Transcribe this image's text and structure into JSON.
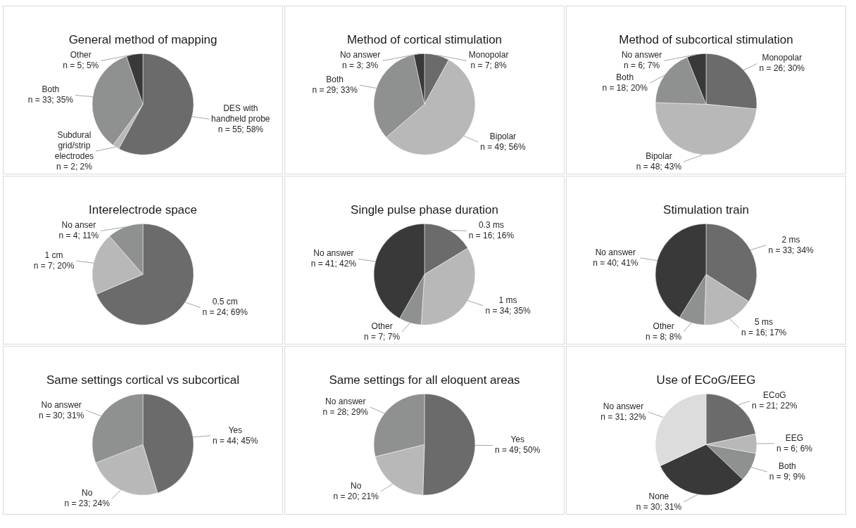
{
  "chart_data": [
    {
      "type": "pie",
      "title": "General method of mapping",
      "categories": [
        "DES with handheld probe",
        "Subdural grid/strip electrodes",
        "Both",
        "Other"
      ],
      "values": [
        55,
        2,
        33,
        5
      ],
      "colors": [
        "#6b6b6b",
        "#b8b8b8",
        "#8f9090",
        "#393939"
      ],
      "value_labels": [
        "n = 55; 58%",
        "n = 2; 2%",
        "n = 33; 35%",
        "n = 5; 5%"
      ]
    },
    {
      "type": "pie",
      "title": "Method of cortical stimulation",
      "categories": [
        "Monopolar",
        "Bipolar",
        "Both",
        "No answer"
      ],
      "values": [
        7,
        49,
        29,
        3
      ],
      "colors": [
        "#6b6b6b",
        "#b8b8b8",
        "#8f9090",
        "#393939"
      ],
      "value_labels": [
        "n = 7; 8%",
        "n = 49; 56%",
        "n = 29; 33%",
        "n = 3; 3%"
      ]
    },
    {
      "type": "pie",
      "title": "Method of subcortical stimulation",
      "categories": [
        "Monopolar",
        "Bipolar",
        "Both",
        "No answer"
      ],
      "values": [
        26,
        48,
        18,
        6
      ],
      "colors": [
        "#6b6b6b",
        "#b8b8b8",
        "#8f9090",
        "#393939"
      ],
      "value_labels": [
        "n = 26; 30%",
        "n = 48; 43%",
        "n = 18; 20%",
        "n = 6; 7%"
      ]
    },
    {
      "type": "pie",
      "title": "Interelectrode space",
      "categories": [
        "0.5 cm",
        "1 cm",
        "No anser"
      ],
      "values": [
        24,
        7,
        4
      ],
      "colors": [
        "#6b6b6b",
        "#b8b8b8",
        "#8f9090"
      ],
      "value_labels": [
        "n = 24; 69%",
        "n = 7; 20%",
        "n = 4; 11%"
      ]
    },
    {
      "type": "pie",
      "title": "Single pulse phase duration",
      "categories": [
        "0.3 ms",
        "1 ms",
        "Other",
        "No answer"
      ],
      "values": [
        16,
        34,
        7,
        41
      ],
      "colors": [
        "#6b6b6b",
        "#b8b8b8",
        "#8f9090",
        "#393939"
      ],
      "value_labels": [
        "n = 16; 16%",
        "n = 34; 35%",
        "n = 7; 7%",
        "n = 41; 42%"
      ]
    },
    {
      "type": "pie",
      "title": "Stimulation train",
      "categories": [
        "2 ms",
        "5 ms",
        "Other",
        "No answer"
      ],
      "values": [
        33,
        16,
        8,
        40
      ],
      "colors": [
        "#6b6b6b",
        "#b8b8b8",
        "#8f9090",
        "#393939"
      ],
      "value_labels": [
        "n = 33; 34%",
        "n = 16; 17%",
        "n = 8; 8%",
        "n = 40; 41%"
      ]
    },
    {
      "type": "pie",
      "title": "Same settings cortical vs subcortical",
      "categories": [
        "Yes",
        "No",
        "No answer"
      ],
      "values": [
        44,
        23,
        30
      ],
      "colors": [
        "#6b6b6b",
        "#b8b8b8",
        "#8f9090"
      ],
      "value_labels": [
        "n = 44; 45%",
        "n = 23; 24%",
        "n = 30; 31%"
      ]
    },
    {
      "type": "pie",
      "title": "Same settings for all eloquent areas",
      "categories": [
        "Yes",
        "No",
        "No answer"
      ],
      "values": [
        49,
        20,
        28
      ],
      "colors": [
        "#6b6b6b",
        "#b8b8b8",
        "#8f9090"
      ],
      "value_labels": [
        "n = 49; 50%",
        "n = 20; 21%",
        "n = 28; 29%"
      ]
    },
    {
      "type": "pie",
      "title": "Use of ECoG/EEG",
      "categories": [
        "ECoG",
        "EEG",
        "Both",
        "None",
        "No answer"
      ],
      "values": [
        21,
        6,
        9,
        30,
        31
      ],
      "colors": [
        "#6b6b6b",
        "#b8b8b8",
        "#8f9090",
        "#393939",
        "#dcdcdc"
      ],
      "value_labels": [
        "n = 21; 22%",
        "n = 6; 6%",
        "n = 9; 9%",
        "n = 30; 31%",
        "n = 31; 32%"
      ]
    }
  ]
}
